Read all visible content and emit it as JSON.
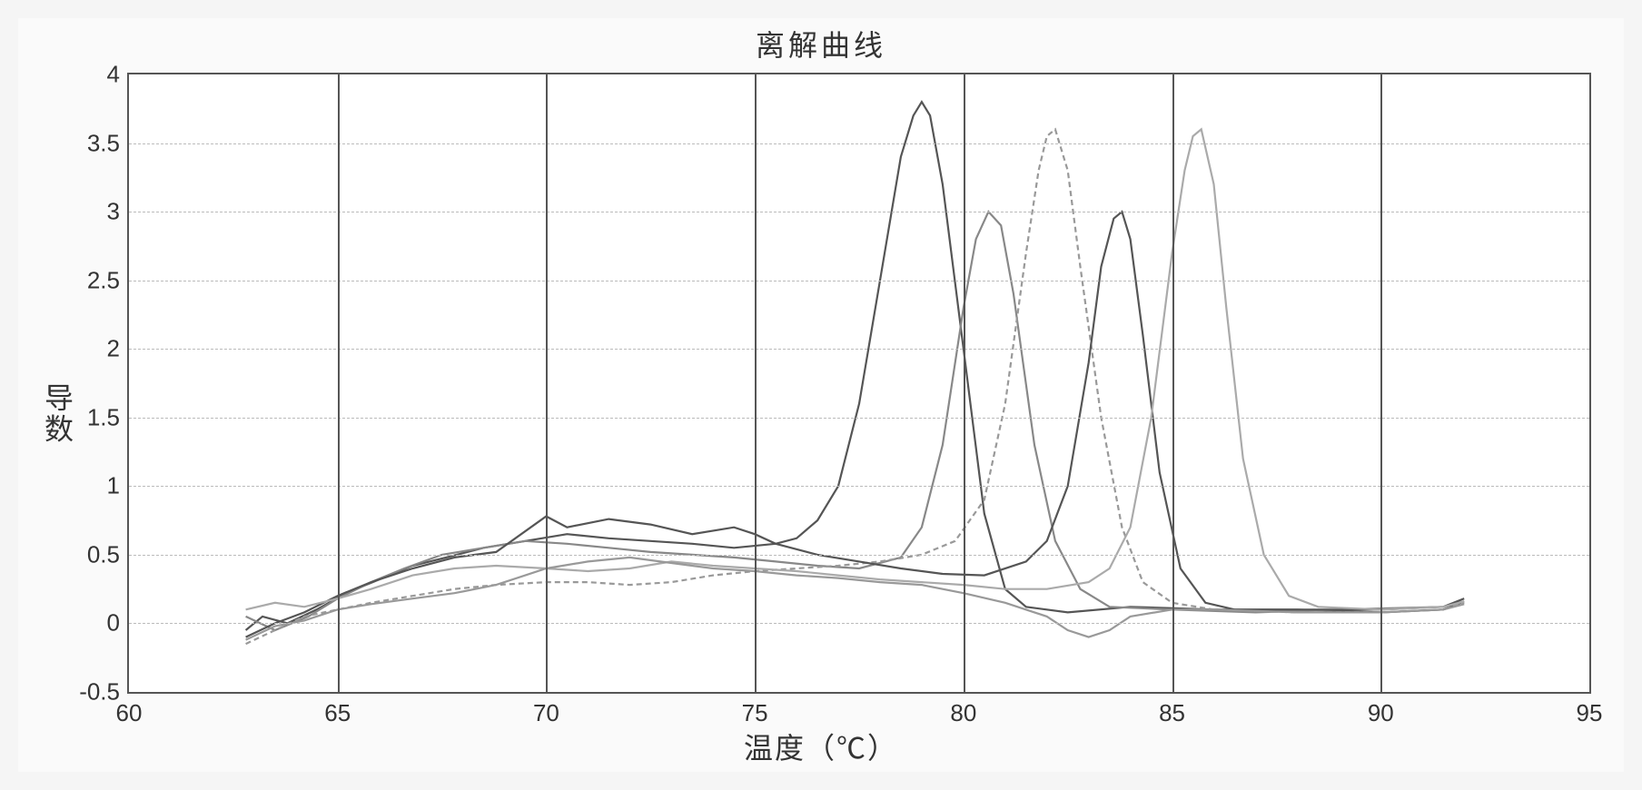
{
  "chart": {
    "type": "line",
    "title": "离解曲线",
    "xlabel": "温度（℃）",
    "ylabel": "导数",
    "background_color": "#ffffff",
    "grid_color": "#bbbbbb",
    "axis_color": "#555555",
    "title_fontsize": 32,
    "label_fontsize": 32,
    "tick_fontsize": 26,
    "xlim": [
      60,
      95
    ],
    "ylim": [
      -0.5,
      4
    ],
    "xticks": [
      60,
      65,
      70,
      75,
      80,
      85,
      90,
      95
    ],
    "yticks": [
      -0.5,
      0,
      0.5,
      1,
      1.5,
      2,
      2.5,
      3,
      3.5,
      4
    ],
    "vgrid_lines": [
      65,
      70,
      75,
      80,
      85,
      90
    ],
    "line_width": 2.2,
    "series": [
      {
        "name": "curve1_peak79",
        "color": "#555555",
        "points": [
          [
            62.8,
            -0.05
          ],
          [
            63.2,
            0.05
          ],
          [
            63.8,
            0.0
          ],
          [
            64.5,
            0.1
          ],
          [
            65.2,
            0.22
          ],
          [
            66.0,
            0.32
          ],
          [
            66.8,
            0.42
          ],
          [
            67.6,
            0.48
          ],
          [
            68.5,
            0.55
          ],
          [
            69.5,
            0.6
          ],
          [
            70.5,
            0.65
          ],
          [
            71.5,
            0.62
          ],
          [
            72.5,
            0.6
          ],
          [
            73.5,
            0.58
          ],
          [
            74.5,
            0.55
          ],
          [
            75.5,
            0.58
          ],
          [
            76.0,
            0.62
          ],
          [
            76.5,
            0.75
          ],
          [
            77.0,
            1.0
          ],
          [
            77.5,
            1.6
          ],
          [
            78.0,
            2.5
          ],
          [
            78.5,
            3.4
          ],
          [
            78.8,
            3.7
          ],
          [
            79.0,
            3.8
          ],
          [
            79.2,
            3.7
          ],
          [
            79.5,
            3.2
          ],
          [
            80.0,
            2.0
          ],
          [
            80.5,
            0.8
          ],
          [
            81.0,
            0.25
          ],
          [
            81.5,
            0.12
          ],
          [
            82.5,
            0.08
          ],
          [
            84.0,
            0.12
          ],
          [
            86.0,
            0.1
          ],
          [
            88.0,
            0.1
          ],
          [
            90.0,
            0.08
          ],
          [
            91.5,
            0.1
          ],
          [
            92.0,
            0.16
          ]
        ]
      },
      {
        "name": "curve2_peak80_5",
        "color": "#888888",
        "points": [
          [
            62.8,
            0.05
          ],
          [
            63.5,
            -0.05
          ],
          [
            64.3,
            0.05
          ],
          [
            65.0,
            0.18
          ],
          [
            65.8,
            0.3
          ],
          [
            66.6,
            0.4
          ],
          [
            67.5,
            0.5
          ],
          [
            68.5,
            0.55
          ],
          [
            69.5,
            0.6
          ],
          [
            70.5,
            0.58
          ],
          [
            71.5,
            0.55
          ],
          [
            72.5,
            0.52
          ],
          [
            73.5,
            0.5
          ],
          [
            74.5,
            0.48
          ],
          [
            75.5,
            0.45
          ],
          [
            76.5,
            0.42
          ],
          [
            77.5,
            0.4
          ],
          [
            78.5,
            0.48
          ],
          [
            79.0,
            0.7
          ],
          [
            79.5,
            1.3
          ],
          [
            80.0,
            2.3
          ],
          [
            80.3,
            2.8
          ],
          [
            80.6,
            3.0
          ],
          [
            80.9,
            2.9
          ],
          [
            81.2,
            2.4
          ],
          [
            81.7,
            1.3
          ],
          [
            82.2,
            0.6
          ],
          [
            82.8,
            0.25
          ],
          [
            83.5,
            0.12
          ],
          [
            85.0,
            0.1
          ],
          [
            87.0,
            0.08
          ],
          [
            89.0,
            0.1
          ],
          [
            91.5,
            0.12
          ],
          [
            92.0,
            0.16
          ]
        ]
      },
      {
        "name": "curve3_peak82_dashed",
        "color": "#999999",
        "dash": "6,4",
        "points": [
          [
            62.8,
            -0.15
          ],
          [
            63.5,
            -0.05
          ],
          [
            64.2,
            0.05
          ],
          [
            65.0,
            0.1
          ],
          [
            65.8,
            0.15
          ],
          [
            66.8,
            0.2
          ],
          [
            67.8,
            0.25
          ],
          [
            68.8,
            0.28
          ],
          [
            70.0,
            0.3
          ],
          [
            71.0,
            0.3
          ],
          [
            72.0,
            0.28
          ],
          [
            73.0,
            0.3
          ],
          [
            74.0,
            0.35
          ],
          [
            75.0,
            0.38
          ],
          [
            76.0,
            0.4
          ],
          [
            77.0,
            0.42
          ],
          [
            78.0,
            0.45
          ],
          [
            79.0,
            0.5
          ],
          [
            79.8,
            0.6
          ],
          [
            80.5,
            0.9
          ],
          [
            81.0,
            1.6
          ],
          [
            81.5,
            2.7
          ],
          [
            81.8,
            3.3
          ],
          [
            82.0,
            3.55
          ],
          [
            82.2,
            3.6
          ],
          [
            82.5,
            3.3
          ],
          [
            82.8,
            2.6
          ],
          [
            83.3,
            1.5
          ],
          [
            83.8,
            0.7
          ],
          [
            84.3,
            0.3
          ],
          [
            85.0,
            0.15
          ],
          [
            86.0,
            0.1
          ],
          [
            88.0,
            0.08
          ],
          [
            90.0,
            0.08
          ],
          [
            91.5,
            0.1
          ],
          [
            92.0,
            0.15
          ]
        ]
      },
      {
        "name": "curve4_peak83_5",
        "color": "#555555",
        "points": [
          [
            62.8,
            -0.1
          ],
          [
            63.5,
            0.0
          ],
          [
            64.2,
            0.08
          ],
          [
            65.0,
            0.2
          ],
          [
            65.8,
            0.3
          ],
          [
            66.8,
            0.4
          ],
          [
            67.8,
            0.48
          ],
          [
            68.8,
            0.52
          ],
          [
            70.0,
            0.78
          ],
          [
            70.5,
            0.7
          ],
          [
            71.5,
            0.76
          ],
          [
            72.5,
            0.72
          ],
          [
            73.5,
            0.65
          ],
          [
            74.5,
            0.7
          ],
          [
            75.0,
            0.65
          ],
          [
            75.5,
            0.58
          ],
          [
            76.5,
            0.5
          ],
          [
            77.5,
            0.45
          ],
          [
            78.5,
            0.4
          ],
          [
            79.5,
            0.36
          ],
          [
            80.5,
            0.35
          ],
          [
            81.5,
            0.45
          ],
          [
            82.0,
            0.6
          ],
          [
            82.5,
            1.0
          ],
          [
            83.0,
            1.9
          ],
          [
            83.3,
            2.6
          ],
          [
            83.6,
            2.95
          ],
          [
            83.8,
            3.0
          ],
          [
            84.0,
            2.8
          ],
          [
            84.3,
            2.1
          ],
          [
            84.7,
            1.1
          ],
          [
            85.2,
            0.4
          ],
          [
            85.8,
            0.15
          ],
          [
            86.5,
            0.1
          ],
          [
            88.0,
            0.1
          ],
          [
            90.0,
            0.1
          ],
          [
            91.5,
            0.12
          ],
          [
            92.0,
            0.18
          ]
        ]
      },
      {
        "name": "curve5_peak85_5",
        "color": "#aaaaaa",
        "points": [
          [
            62.8,
            0.1
          ],
          [
            63.5,
            0.15
          ],
          [
            64.2,
            0.12
          ],
          [
            65.0,
            0.18
          ],
          [
            65.8,
            0.25
          ],
          [
            66.8,
            0.35
          ],
          [
            67.8,
            0.4
          ],
          [
            68.8,
            0.42
          ],
          [
            70.0,
            0.4
          ],
          [
            71.0,
            0.38
          ],
          [
            72.0,
            0.4
          ],
          [
            73.0,
            0.45
          ],
          [
            74.0,
            0.42
          ],
          [
            75.0,
            0.4
          ],
          [
            76.0,
            0.38
          ],
          [
            77.0,
            0.35
          ],
          [
            78.0,
            0.32
          ],
          [
            79.0,
            0.3
          ],
          [
            80.0,
            0.28
          ],
          [
            81.0,
            0.25
          ],
          [
            82.0,
            0.25
          ],
          [
            83.0,
            0.3
          ],
          [
            83.5,
            0.4
          ],
          [
            84.0,
            0.7
          ],
          [
            84.5,
            1.5
          ],
          [
            85.0,
            2.7
          ],
          [
            85.3,
            3.3
          ],
          [
            85.5,
            3.55
          ],
          [
            85.7,
            3.6
          ],
          [
            86.0,
            3.2
          ],
          [
            86.3,
            2.3
          ],
          [
            86.7,
            1.2
          ],
          [
            87.2,
            0.5
          ],
          [
            87.8,
            0.2
          ],
          [
            88.5,
            0.12
          ],
          [
            90.0,
            0.1
          ],
          [
            91.5,
            0.12
          ],
          [
            92.0,
            0.16
          ]
        ]
      },
      {
        "name": "curve6_baseline_low",
        "color": "#999999",
        "points": [
          [
            62.8,
            -0.12
          ],
          [
            63.5,
            -0.02
          ],
          [
            64.2,
            0.02
          ],
          [
            65.0,
            0.1
          ],
          [
            65.8,
            0.14
          ],
          [
            66.8,
            0.18
          ],
          [
            67.8,
            0.22
          ],
          [
            68.8,
            0.28
          ],
          [
            70.0,
            0.4
          ],
          [
            71.0,
            0.45
          ],
          [
            72.0,
            0.48
          ],
          [
            73.0,
            0.44
          ],
          [
            74.0,
            0.4
          ],
          [
            75.0,
            0.38
          ],
          [
            76.0,
            0.35
          ],
          [
            77.0,
            0.33
          ],
          [
            78.0,
            0.3
          ],
          [
            79.0,
            0.28
          ],
          [
            80.0,
            0.22
          ],
          [
            81.0,
            0.15
          ],
          [
            82.0,
            0.05
          ],
          [
            82.5,
            -0.05
          ],
          [
            83.0,
            -0.1
          ],
          [
            83.5,
            -0.05
          ],
          [
            84.0,
            0.05
          ],
          [
            85.0,
            0.1
          ],
          [
            86.0,
            0.1
          ],
          [
            88.0,
            0.08
          ],
          [
            90.0,
            0.08
          ],
          [
            91.5,
            0.1
          ],
          [
            92.0,
            0.14
          ]
        ]
      }
    ]
  }
}
